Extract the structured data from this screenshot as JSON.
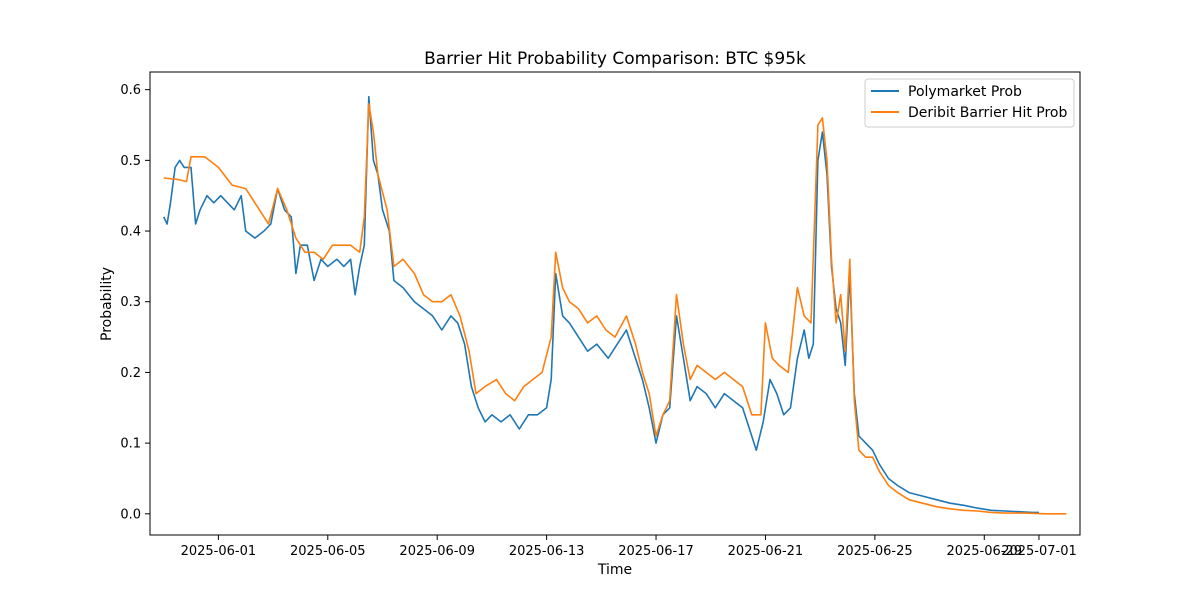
{
  "chart_data": {
    "type": "line",
    "title": "Barrier Hit Probability Comparison: BTC $95k",
    "xlabel": "Time",
    "ylabel": "Probability",
    "x_ticks": [
      "2025-06-01",
      "2025-06-05",
      "2025-06-09",
      "2025-06-13",
      "2025-06-17",
      "2025-06-21",
      "2025-06-25",
      "2025-06-29",
      "2025-07-01"
    ],
    "y_ticks": [
      0.0,
      0.1,
      0.2,
      0.3,
      0.4,
      0.5,
      0.6
    ],
    "xlim": [
      "2025-05-29T12:00",
      "2025-07-02T12:00"
    ],
    "ylim": [
      -0.03,
      0.625
    ],
    "grid": false,
    "legend_position": "top-right",
    "series": [
      {
        "name": "Polymarket Prob",
        "color": "#1f77b4",
        "points": [
          [
            "2025-05-30T00:00",
            0.42
          ],
          [
            "2025-05-30T03:00",
            0.41
          ],
          [
            "2025-05-30T06:00",
            0.44
          ],
          [
            "2025-05-30T10:00",
            0.49
          ],
          [
            "2025-05-30T14:00",
            0.5
          ],
          [
            "2025-05-30T18:00",
            0.49
          ],
          [
            "2025-05-31T00:00",
            0.49
          ],
          [
            "2025-05-31T04:00",
            0.41
          ],
          [
            "2025-05-31T08:00",
            0.43
          ],
          [
            "2025-05-31T14:00",
            0.45
          ],
          [
            "2025-05-31T20:00",
            0.44
          ],
          [
            "2025-06-01T02:00",
            0.45
          ],
          [
            "2025-06-01T08:00",
            0.44
          ],
          [
            "2025-06-01T14:00",
            0.43
          ],
          [
            "2025-06-01T20:00",
            0.45
          ],
          [
            "2025-06-02T00:00",
            0.4
          ],
          [
            "2025-06-02T08:00",
            0.39
          ],
          [
            "2025-06-02T16:00",
            0.4
          ],
          [
            "2025-06-02T22:00",
            0.41
          ],
          [
            "2025-06-03T04:00",
            0.46
          ],
          [
            "2025-06-03T10:00",
            0.43
          ],
          [
            "2025-06-03T16:00",
            0.42
          ],
          [
            "2025-06-03T20:00",
            0.34
          ],
          [
            "2025-06-04T00:00",
            0.38
          ],
          [
            "2025-06-04T06:00",
            0.38
          ],
          [
            "2025-06-04T12:00",
            0.33
          ],
          [
            "2025-06-04T18:00",
            0.36
          ],
          [
            "2025-06-05T00:00",
            0.35
          ],
          [
            "2025-06-05T08:00",
            0.36
          ],
          [
            "2025-06-05T14:00",
            0.35
          ],
          [
            "2025-06-05T20:00",
            0.36
          ],
          [
            "2025-06-06T00:00",
            0.31
          ],
          [
            "2025-06-06T04:00",
            0.35
          ],
          [
            "2025-06-06T08:00",
            0.38
          ],
          [
            "2025-06-06T12:00",
            0.59
          ],
          [
            "2025-06-06T16:00",
            0.5
          ],
          [
            "2025-06-06T20:00",
            0.48
          ],
          [
            "2025-06-07T00:00",
            0.43
          ],
          [
            "2025-06-07T06:00",
            0.4
          ],
          [
            "2025-06-07T10:00",
            0.33
          ],
          [
            "2025-06-07T18:00",
            0.32
          ],
          [
            "2025-06-08T04:00",
            0.3
          ],
          [
            "2025-06-08T12:00",
            0.29
          ],
          [
            "2025-06-08T20:00",
            0.28
          ],
          [
            "2025-06-09T04:00",
            0.26
          ],
          [
            "2025-06-09T12:00",
            0.28
          ],
          [
            "2025-06-09T18:00",
            0.27
          ],
          [
            "2025-06-10T00:00",
            0.24
          ],
          [
            "2025-06-10T06:00",
            0.18
          ],
          [
            "2025-06-10T12:00",
            0.15
          ],
          [
            "2025-06-10T18:00",
            0.13
          ],
          [
            "2025-06-11T00:00",
            0.14
          ],
          [
            "2025-06-11T08:00",
            0.13
          ],
          [
            "2025-06-11T16:00",
            0.14
          ],
          [
            "2025-06-12T00:00",
            0.12
          ],
          [
            "2025-06-12T08:00",
            0.14
          ],
          [
            "2025-06-12T16:00",
            0.14
          ],
          [
            "2025-06-13T00:00",
            0.15
          ],
          [
            "2025-06-13T04:00",
            0.19
          ],
          [
            "2025-06-13T08:00",
            0.34
          ],
          [
            "2025-06-13T14:00",
            0.28
          ],
          [
            "2025-06-13T20:00",
            0.27
          ],
          [
            "2025-06-14T04:00",
            0.25
          ],
          [
            "2025-06-14T12:00",
            0.23
          ],
          [
            "2025-06-14T20:00",
            0.24
          ],
          [
            "2025-06-15T06:00",
            0.22
          ],
          [
            "2025-06-15T14:00",
            0.24
          ],
          [
            "2025-06-15T22:00",
            0.26
          ],
          [
            "2025-06-16T06:00",
            0.22
          ],
          [
            "2025-06-16T12:00",
            0.19
          ],
          [
            "2025-06-16T18:00",
            0.15
          ],
          [
            "2025-06-17T00:00",
            0.1
          ],
          [
            "2025-06-17T06:00",
            0.14
          ],
          [
            "2025-06-17T12:00",
            0.15
          ],
          [
            "2025-06-17T18:00",
            0.28
          ],
          [
            "2025-06-18T00:00",
            0.22
          ],
          [
            "2025-06-18T06:00",
            0.16
          ],
          [
            "2025-06-18T12:00",
            0.18
          ],
          [
            "2025-06-18T20:00",
            0.17
          ],
          [
            "2025-06-19T04:00",
            0.15
          ],
          [
            "2025-06-19T12:00",
            0.17
          ],
          [
            "2025-06-19T20:00",
            0.16
          ],
          [
            "2025-06-20T04:00",
            0.15
          ],
          [
            "2025-06-20T10:00",
            0.12
          ],
          [
            "2025-06-20T16:00",
            0.09
          ],
          [
            "2025-06-20T22:00",
            0.13
          ],
          [
            "2025-06-21T04:00",
            0.19
          ],
          [
            "2025-06-21T10:00",
            0.17
          ],
          [
            "2025-06-21T16:00",
            0.14
          ],
          [
            "2025-06-21T22:00",
            0.15
          ],
          [
            "2025-06-22T04:00",
            0.22
          ],
          [
            "2025-06-22T10:00",
            0.26
          ],
          [
            "2025-06-22T14:00",
            0.22
          ],
          [
            "2025-06-22T18:00",
            0.24
          ],
          [
            "2025-06-22T22:00",
            0.5
          ],
          [
            "2025-06-23T02:00",
            0.54
          ],
          [
            "2025-06-23T06:00",
            0.48
          ],
          [
            "2025-06-23T10:00",
            0.35
          ],
          [
            "2025-06-23T14:00",
            0.29
          ],
          [
            "2025-06-23T18:00",
            0.27
          ],
          [
            "2025-06-23T22:00",
            0.21
          ],
          [
            "2025-06-24T02:00",
            0.34
          ],
          [
            "2025-06-24T06:00",
            0.17
          ],
          [
            "2025-06-24T10:00",
            0.11
          ],
          [
            "2025-06-24T16:00",
            0.1
          ],
          [
            "2025-06-24T22:00",
            0.09
          ],
          [
            "2025-06-25T04:00",
            0.07
          ],
          [
            "2025-06-25T12:00",
            0.05
          ],
          [
            "2025-06-25T20:00",
            0.04
          ],
          [
            "2025-06-26T06:00",
            0.03
          ],
          [
            "2025-06-26T18:00",
            0.025
          ],
          [
            "2025-06-27T06:00",
            0.02
          ],
          [
            "2025-06-27T18:00",
            0.015
          ],
          [
            "2025-06-28T06:00",
            0.012
          ],
          [
            "2025-06-28T18:00",
            0.008
          ],
          [
            "2025-06-29T06:00",
            0.005
          ],
          [
            "2025-06-29T18:00",
            0.004
          ],
          [
            "2025-06-30T06:00",
            0.003
          ],
          [
            "2025-06-30T18:00",
            0.002
          ],
          [
            "2025-07-01T00:00",
            0.002
          ]
        ]
      },
      {
        "name": "Deribit Barrier Hit Prob",
        "color": "#ff7f0e",
        "points": [
          [
            "2025-05-30T00:00",
            0.475
          ],
          [
            "2025-05-30T12:00",
            0.473
          ],
          [
            "2025-05-30T20:00",
            0.47
          ],
          [
            "2025-05-31T00:00",
            0.505
          ],
          [
            "2025-05-31T12:00",
            0.505
          ],
          [
            "2025-06-01T00:00",
            0.49
          ],
          [
            "2025-06-01T12:00",
            0.465
          ],
          [
            "2025-06-02T00:00",
            0.46
          ],
          [
            "2025-06-02T12:00",
            0.43
          ],
          [
            "2025-06-02T20:00",
            0.41
          ],
          [
            "2025-06-03T04:00",
            0.46
          ],
          [
            "2025-06-03T12:00",
            0.43
          ],
          [
            "2025-06-03T20:00",
            0.39
          ],
          [
            "2025-06-04T04:00",
            0.37
          ],
          [
            "2025-06-04T12:00",
            0.37
          ],
          [
            "2025-06-04T20:00",
            0.36
          ],
          [
            "2025-06-05T04:00",
            0.38
          ],
          [
            "2025-06-05T12:00",
            0.38
          ],
          [
            "2025-06-05T20:00",
            0.38
          ],
          [
            "2025-06-06T04:00",
            0.37
          ],
          [
            "2025-06-06T08:00",
            0.42
          ],
          [
            "2025-06-06T12:00",
            0.58
          ],
          [
            "2025-06-06T16:00",
            0.54
          ],
          [
            "2025-06-06T20:00",
            0.48
          ],
          [
            "2025-06-07T04:00",
            0.43
          ],
          [
            "2025-06-07T10:00",
            0.35
          ],
          [
            "2025-06-07T18:00",
            0.36
          ],
          [
            "2025-06-08T04:00",
            0.34
          ],
          [
            "2025-06-08T12:00",
            0.31
          ],
          [
            "2025-06-08T20:00",
            0.3
          ],
          [
            "2025-06-09T04:00",
            0.3
          ],
          [
            "2025-06-09T12:00",
            0.31
          ],
          [
            "2025-06-09T20:00",
            0.28
          ],
          [
            "2025-06-10T04:00",
            0.23
          ],
          [
            "2025-06-10T10:00",
            0.17
          ],
          [
            "2025-06-10T18:00",
            0.18
          ],
          [
            "2025-06-11T04:00",
            0.19
          ],
          [
            "2025-06-11T12:00",
            0.17
          ],
          [
            "2025-06-11T20:00",
            0.16
          ],
          [
            "2025-06-12T04:00",
            0.18
          ],
          [
            "2025-06-12T12:00",
            0.19
          ],
          [
            "2025-06-12T20:00",
            0.2
          ],
          [
            "2025-06-13T04:00",
            0.25
          ],
          [
            "2025-06-13T08:00",
            0.37
          ],
          [
            "2025-06-13T14:00",
            0.32
          ],
          [
            "2025-06-13T20:00",
            0.3
          ],
          [
            "2025-06-14T04:00",
            0.29
          ],
          [
            "2025-06-14T12:00",
            0.27
          ],
          [
            "2025-06-14T20:00",
            0.28
          ],
          [
            "2025-06-15T04:00",
            0.26
          ],
          [
            "2025-06-15T12:00",
            0.25
          ],
          [
            "2025-06-15T22:00",
            0.28
          ],
          [
            "2025-06-16T06:00",
            0.24
          ],
          [
            "2025-06-16T12:00",
            0.2
          ],
          [
            "2025-06-16T18:00",
            0.17
          ],
          [
            "2025-06-17T00:00",
            0.11
          ],
          [
            "2025-06-17T06:00",
            0.14
          ],
          [
            "2025-06-17T12:00",
            0.16
          ],
          [
            "2025-06-17T18:00",
            0.31
          ],
          [
            "2025-06-18T00:00",
            0.24
          ],
          [
            "2025-06-18T06:00",
            0.19
          ],
          [
            "2025-06-18T12:00",
            0.21
          ],
          [
            "2025-06-18T20:00",
            0.2
          ],
          [
            "2025-06-19T04:00",
            0.19
          ],
          [
            "2025-06-19T12:00",
            0.2
          ],
          [
            "2025-06-19T20:00",
            0.19
          ],
          [
            "2025-06-20T04:00",
            0.18
          ],
          [
            "2025-06-20T12:00",
            0.14
          ],
          [
            "2025-06-20T20:00",
            0.14
          ],
          [
            "2025-06-21T00:00",
            0.27
          ],
          [
            "2025-06-21T06:00",
            0.22
          ],
          [
            "2025-06-21T12:00",
            0.21
          ],
          [
            "2025-06-21T20:00",
            0.2
          ],
          [
            "2025-06-22T04:00",
            0.32
          ],
          [
            "2025-06-22T10:00",
            0.28
          ],
          [
            "2025-06-22T16:00",
            0.27
          ],
          [
            "2025-06-22T22:00",
            0.55
          ],
          [
            "2025-06-23T02:00",
            0.56
          ],
          [
            "2025-06-23T06:00",
            0.5
          ],
          [
            "2025-06-23T10:00",
            0.36
          ],
          [
            "2025-06-23T14:00",
            0.27
          ],
          [
            "2025-06-23T18:00",
            0.31
          ],
          [
            "2025-06-23T22:00",
            0.23
          ],
          [
            "2025-06-24T02:00",
            0.36
          ],
          [
            "2025-06-24T06:00",
            0.16
          ],
          [
            "2025-06-24T10:00",
            0.09
          ],
          [
            "2025-06-24T16:00",
            0.08
          ],
          [
            "2025-06-24T22:00",
            0.08
          ],
          [
            "2025-06-25T04:00",
            0.06
          ],
          [
            "2025-06-25T12:00",
            0.04
          ],
          [
            "2025-06-25T20:00",
            0.03
          ],
          [
            "2025-06-26T06:00",
            0.02
          ],
          [
            "2025-06-26T18:00",
            0.015
          ],
          [
            "2025-06-27T06:00",
            0.01
          ],
          [
            "2025-06-27T18:00",
            0.007
          ],
          [
            "2025-06-28T06:00",
            0.005
          ],
          [
            "2025-06-28T18:00",
            0.004
          ],
          [
            "2025-06-29T06:00",
            0.002
          ],
          [
            "2025-06-29T18:00",
            0.001
          ],
          [
            "2025-06-30T12:00",
            0.001
          ],
          [
            "2025-07-01T06:00",
            0.0
          ],
          [
            "2025-07-02T00:00",
            0.0
          ]
        ]
      }
    ]
  }
}
